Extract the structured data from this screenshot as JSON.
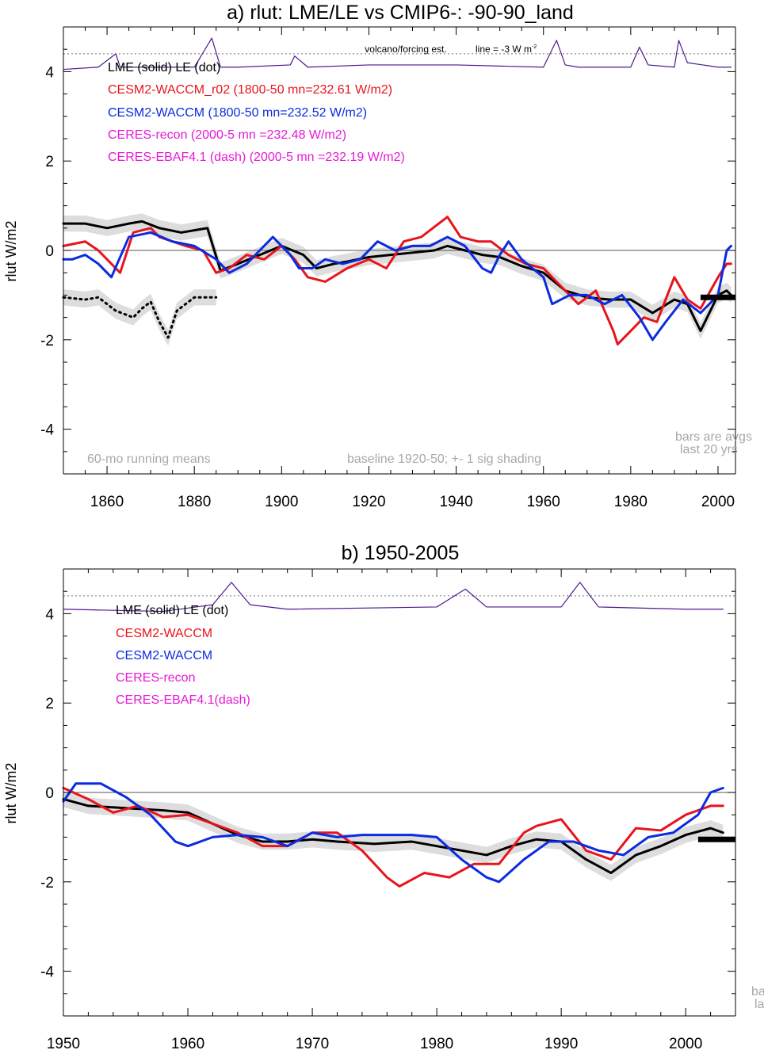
{
  "colors": {
    "lme": "#000000",
    "waccm_r02": "#e8141b",
    "waccm": "#0b2be0",
    "ceres": "#e619d6",
    "volcano": "#4b1a8c",
    "shade": "#cfcfcf",
    "gray_text": "#a8a8a8"
  },
  "panel_a": {
    "title": "a) rlut: LME/LE vs CMIP6-: -90-90_land",
    "ylabel": "rlut W/m2",
    "volcano_label": "volcano/forcing est.",
    "line_label": "line = -3 W m",
    "line_label_sup": "-2",
    "legend": [
      "LME (solid)   LE (dot)",
      "CESM2-WACCM_r02 (1800-50 mn=232.61 W/m2)",
      "CESM2-WACCM (1800-50 mn=232.52 W/m2)",
      "CERES-recon (2000-5 mn =232.48 W/m2)",
      "CERES-EBAF4.1 (dash) (2000-5 mn =232.19 W/m2)"
    ],
    "note_left": "60-mo running means",
    "note_mid": "baseline 1920-50; +- 1 sig shading",
    "note_right_1": "bars are avgs",
    "note_right_2": "last 20 yrs",
    "yticks": [
      "4",
      "2",
      "0",
      "-2",
      "-4"
    ],
    "xticks": [
      "1860",
      "1880",
      "1900",
      "1920",
      "1940",
      "1960",
      "1980",
      "2000"
    ]
  },
  "panel_b": {
    "title": "b) 1950-2005",
    "ylabel": "rlut W/m2",
    "legend": [
      "LME (solid)       LE (dot)",
      "CESM2-WACCM",
      "CESM2-WACCM",
      "CERES-recon",
      "CERES-EBAF4.1(dash)"
    ],
    "note_right_1": "ba",
    "note_right_2": "la",
    "yticks": [
      "4",
      "2",
      "0",
      "-2",
      "-4"
    ],
    "xticks": [
      "1950",
      "1960",
      "1970",
      "1980",
      "1990",
      "2000"
    ]
  },
  "chart_data": [
    {
      "type": "line",
      "title": "a) rlut: LME/LE vs CMIP6-: -90-90_land",
      "xlabel": "",
      "ylabel": "rlut W/m2",
      "xlim": [
        1850,
        2004
      ],
      "ylim": [
        -5,
        5
      ],
      "series": [
        {
          "name": "LME (solid)",
          "x": [
            1850,
            1855,
            1860,
            1865,
            1868,
            1872,
            1877,
            1883,
            1886,
            1890,
            1895,
            1900,
            1905,
            1908,
            1912,
            1915,
            1920,
            1925,
            1930,
            1935,
            1938,
            1942,
            1946,
            1950,
            1955,
            1960,
            1965,
            1970,
            1975,
            1980,
            1985,
            1990,
            1993,
            1996,
            2000,
            2002,
            2003
          ],
          "y": [
            0.6,
            0.6,
            0.5,
            0.6,
            0.65,
            0.5,
            0.4,
            0.5,
            -0.45,
            -0.3,
            -0.1,
            0.1,
            -0.1,
            -0.4,
            -0.3,
            -0.25,
            -0.15,
            -0.1,
            -0.05,
            0.0,
            0.1,
            0.0,
            -0.1,
            -0.15,
            -0.35,
            -0.5,
            -0.9,
            -1.05,
            -1.1,
            -1.1,
            -1.4,
            -1.1,
            -1.2,
            -1.8,
            -1.0,
            -0.9,
            -1.0
          ]
        },
        {
          "name": "LE (dot)",
          "x": [
            1850,
            1855,
            1858,
            1862,
            1866,
            1868,
            1870,
            1872,
            1874,
            1876,
            1880,
            1885
          ],
          "y": [
            -1.05,
            -1.1,
            -1.05,
            -1.35,
            -1.5,
            -1.3,
            -1.15,
            -1.6,
            -1.95,
            -1.35,
            -1.05,
            -1.05
          ]
        },
        {
          "name": "CESM2-WACCM_r02",
          "x": [
            1850,
            1855,
            1858,
            1860,
            1863,
            1866,
            1870,
            1872,
            1875,
            1878,
            1882,
            1885,
            1888,
            1892,
            1896,
            1900,
            1903,
            1906,
            1910,
            1915,
            1920,
            1924,
            1928,
            1932,
            1936,
            1938,
            1941,
            1945,
            1948,
            1952,
            1956,
            1960,
            1964,
            1968,
            1972,
            1976,
            1977,
            1980,
            1983,
            1986,
            1990,
            1993,
            1996,
            2000,
            2002,
            2003
          ],
          "y": [
            0.1,
            0.2,
            0.0,
            -0.2,
            -0.5,
            0.4,
            0.5,
            0.3,
            0.2,
            0.1,
            0.0,
            -0.5,
            -0.4,
            -0.1,
            -0.2,
            0.1,
            -0.2,
            -0.6,
            -0.7,
            -0.4,
            -0.2,
            -0.4,
            0.2,
            0.3,
            0.6,
            0.75,
            0.3,
            0.2,
            0.2,
            -0.1,
            -0.3,
            -0.4,
            -0.8,
            -1.2,
            -0.9,
            -1.8,
            -2.1,
            -1.8,
            -1.5,
            -1.6,
            -0.6,
            -1.1,
            -1.3,
            -0.6,
            -0.3,
            -0.3
          ]
        },
        {
          "name": "CESM2-WACCM",
          "x": [
            1850,
            1852,
            1855,
            1858,
            1861,
            1865,
            1870,
            1875,
            1880,
            1885,
            1888,
            1892,
            1896,
            1898,
            1902,
            1904,
            1907,
            1910,
            1914,
            1918,
            1922,
            1926,
            1930,
            1934,
            1938,
            1942,
            1946,
            1948,
            1950,
            1952,
            1955,
            1960,
            1962,
            1966,
            1970,
            1974,
            1978,
            1982,
            1985,
            1988,
            1992,
            1996,
            2000,
            2002,
            2003
          ],
          "y": [
            -0.2,
            -0.2,
            -0.1,
            -0.3,
            -0.6,
            0.3,
            0.4,
            0.2,
            0.1,
            -0.2,
            -0.5,
            -0.3,
            0.1,
            0.3,
            -0.1,
            -0.4,
            -0.4,
            -0.2,
            -0.3,
            -0.2,
            0.2,
            0.0,
            0.1,
            0.1,
            0.3,
            0.1,
            -0.4,
            -0.5,
            -0.1,
            0.2,
            -0.2,
            -0.6,
            -1.2,
            -1.0,
            -1.0,
            -1.2,
            -1.0,
            -1.5,
            -2.0,
            -1.6,
            -1.1,
            -1.4,
            -1.0,
            0.0,
            0.1
          ]
        },
        {
          "name": "volcano/forcing est.",
          "x": [
            1850,
            1858,
            1862,
            1863,
            1866,
            1880,
            1884,
            1886,
            1890,
            1902,
            1903,
            1906,
            1920,
            1940,
            1960,
            1963,
            1965,
            1968,
            1980,
            1982,
            1984,
            1990,
            1991,
            1993,
            2000,
            2003
          ],
          "y": [
            4.05,
            4.1,
            4.4,
            4.1,
            4.1,
            4.1,
            4.75,
            4.1,
            4.1,
            4.15,
            4.35,
            4.1,
            4.15,
            4.15,
            4.1,
            4.7,
            4.15,
            4.1,
            4.1,
            4.55,
            4.15,
            4.1,
            4.7,
            4.2,
            4.1,
            4.1
          ]
        }
      ],
      "reference_line": 4.4,
      "bar_last_20_yrs": {
        "x": [
          1996,
          2004
        ],
        "y": -1.05
      }
    },
    {
      "type": "line",
      "title": "b) 1950-2005",
      "xlabel": "",
      "ylabel": "rlut W/m2",
      "xlim": [
        1950,
        2004
      ],
      "ylim": [
        -5,
        5
      ],
      "series": [
        {
          "name": "LME (solid)",
          "x": [
            1950,
            1952,
            1955,
            1958,
            1960,
            1962,
            1964,
            1966,
            1968,
            1970,
            1972,
            1975,
            1978,
            1980,
            1982,
            1984,
            1986,
            1988,
            1990,
            1992,
            1994,
            1996,
            1998,
            2000,
            2002,
            2003
          ],
          "y": [
            -0.15,
            -0.3,
            -0.35,
            -0.4,
            -0.45,
            -0.7,
            -0.95,
            -1.1,
            -1.1,
            -1.05,
            -1.1,
            -1.15,
            -1.1,
            -1.2,
            -1.3,
            -1.4,
            -1.2,
            -1.05,
            -1.1,
            -1.5,
            -1.8,
            -1.4,
            -1.2,
            -0.95,
            -0.8,
            -0.9
          ]
        },
        {
          "name": "CESM2-WACCM",
          "x": [
            1950,
            1952,
            1954,
            1956,
            1958,
            1960,
            1962,
            1964,
            1966,
            1968,
            1970,
            1972,
            1974,
            1976,
            1977,
            1979,
            1981,
            1983,
            1985,
            1987,
            1988,
            1990,
            1992,
            1994,
            1996,
            1998,
            2000,
            2002,
            2003
          ],
          "y": [
            0.1,
            -0.15,
            -0.45,
            -0.3,
            -0.55,
            -0.5,
            -0.7,
            -0.9,
            -1.2,
            -1.2,
            -0.9,
            -0.9,
            -1.3,
            -1.9,
            -2.1,
            -1.8,
            -1.9,
            -1.6,
            -1.6,
            -0.9,
            -0.75,
            -0.6,
            -1.3,
            -1.5,
            -0.8,
            -0.85,
            -0.5,
            -0.3,
            -0.3
          ]
        },
        {
          "name": "CESM2-WACCM",
          "x": [
            1950,
            1951,
            1953,
            1955,
            1957,
            1959,
            1960,
            1962,
            1964,
            1966,
            1968,
            1970,
            1972,
            1974,
            1976,
            1978,
            1980,
            1982,
            1984,
            1985,
            1987,
            1989,
            1991,
            1993,
            1995,
            1997,
            1999,
            2001,
            2002,
            2003
          ],
          "y": [
            -0.2,
            0.2,
            0.2,
            -0.1,
            -0.5,
            -1.1,
            -1.2,
            -1.0,
            -0.95,
            -1.0,
            -1.2,
            -0.9,
            -1.0,
            -0.95,
            -0.95,
            -0.95,
            -1.0,
            -1.5,
            -1.9,
            -2.0,
            -1.5,
            -1.1,
            -1.1,
            -1.3,
            -1.4,
            -1.0,
            -0.9,
            -0.5,
            0.0,
            0.1
          ]
        },
        {
          "name": "volcano/forcing est.",
          "x": [
            1950,
            1958,
            1962,
            1963.5,
            1965,
            1968,
            1980,
            1982.3,
            1984,
            1990,
            1991.5,
            1993,
            2000,
            2003
          ],
          "y": [
            4.1,
            4.05,
            4.2,
            4.7,
            4.2,
            4.1,
            4.15,
            4.55,
            4.15,
            4.15,
            4.7,
            4.15,
            4.1,
            4.1
          ]
        }
      ],
      "reference_line": 4.4,
      "bar_last_20_yrs": {
        "x": [
          2001,
          2004
        ],
        "y": -1.05
      }
    }
  ]
}
